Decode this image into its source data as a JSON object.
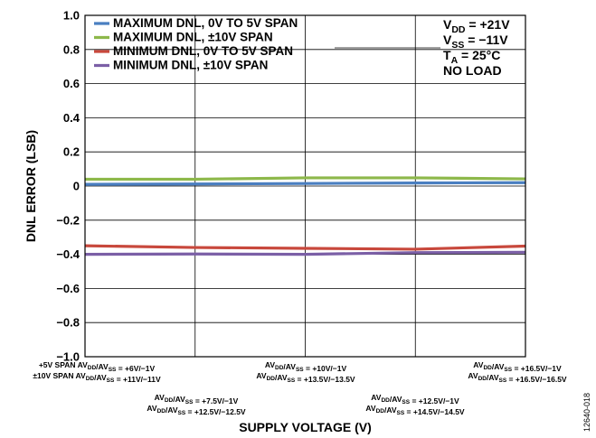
{
  "chart_data": {
    "type": "line",
    "ylabel": "DNL ERROR (LSB)",
    "xlabel": "SUPPLY VOLTAGE (V)",
    "ylim": [
      -1.0,
      1.0
    ],
    "yticks": [
      1.0,
      0.8,
      0.6,
      0.4,
      0.2,
      0,
      -0.2,
      -0.4,
      -0.6,
      -0.8,
      -1.0
    ],
    "ytick_labels": [
      "1.0",
      "0.8",
      "0.6",
      "0.4",
      "0.2",
      "0",
      "−0.2",
      "−0.4",
      "−0.6",
      "−0.8",
      "−1.0"
    ],
    "x_count": 5,
    "grid": true,
    "legend_position": "top-left",
    "categories": [
      {
        "parts": [
          [
            "+5V SPAN AV",
            ""
          ],
          [
            "DD",
            "sub"
          ],
          [
            "/AV",
            ""
          ],
          [
            "SS",
            "sub"
          ],
          [
            " = +6V/−1V",
            ""
          ]
        ],
        "parts2": [
          [
            "±10V SPAN AV",
            ""
          ],
          [
            "DD",
            "sub"
          ],
          [
            "/AV",
            ""
          ],
          [
            "SS",
            "sub"
          ],
          [
            " = +11V/−11V",
            ""
          ]
        ]
      },
      {
        "parts": [
          [
            "AV",
            ""
          ],
          [
            "DD",
            "sub"
          ],
          [
            "/AV",
            ""
          ],
          [
            "SS",
            "sub"
          ],
          [
            " = +7.5V/−1V",
            ""
          ]
        ],
        "parts2": [
          [
            "AV",
            ""
          ],
          [
            "DD",
            "sub"
          ],
          [
            "/AV",
            ""
          ],
          [
            "SS",
            "sub"
          ],
          [
            " = +12.5V/−12.5V",
            ""
          ]
        ]
      },
      {
        "parts": [
          [
            "AV",
            ""
          ],
          [
            "DD",
            "sub"
          ],
          [
            "/AV",
            ""
          ],
          [
            "SS",
            "sub"
          ],
          [
            " = +10V/−1V",
            ""
          ]
        ],
        "parts2": [
          [
            "AV",
            ""
          ],
          [
            "DD",
            "sub"
          ],
          [
            "/AV",
            ""
          ],
          [
            "SS",
            "sub"
          ],
          [
            " = +13.5V/−13.5V",
            ""
          ]
        ]
      },
      {
        "parts": [
          [
            "AV",
            ""
          ],
          [
            "DD",
            "sub"
          ],
          [
            "/AV",
            ""
          ],
          [
            "SS",
            "sub"
          ],
          [
            " = +12.5V/−1V",
            ""
          ]
        ],
        "parts2": [
          [
            "AV",
            ""
          ],
          [
            "DD",
            "sub"
          ],
          [
            "/AV",
            ""
          ],
          [
            "SS",
            "sub"
          ],
          [
            " = +14.5V/−14.5V",
            ""
          ]
        ]
      },
      {
        "parts": [
          [
            "AV",
            ""
          ],
          [
            "DD",
            "sub"
          ],
          [
            "/AV",
            ""
          ],
          [
            "SS",
            "sub"
          ],
          [
            " = +16.5V/−1V",
            ""
          ]
        ],
        "parts2": [
          [
            "AV",
            ""
          ],
          [
            "DD",
            "sub"
          ],
          [
            "/AV",
            ""
          ],
          [
            "SS",
            "sub"
          ],
          [
            " = +16.5V/−16.5V",
            ""
          ]
        ]
      }
    ],
    "series": [
      {
        "name": "MAXIMUM DNL, 0V TO 5V SPAN",
        "color": "#4a7fc1",
        "values": [
          0.01,
          0.012,
          0.015,
          0.018,
          0.02
        ]
      },
      {
        "name": "MAXIMUM DNL, ±10V SPAN",
        "color": "#8db84a",
        "values": [
          0.04,
          0.04,
          0.048,
          0.048,
          0.042
        ]
      },
      {
        "name": "MINIMUM DNL, 0V TO 5V SPAN",
        "color": "#c8483c",
        "values": [
          -0.35,
          -0.36,
          -0.365,
          -0.37,
          -0.352
        ]
      },
      {
        "name": "MINIMUM DNL, ±10V SPAN",
        "color": "#7b5fa6",
        "values": [
          -0.4,
          -0.398,
          -0.4,
          -0.39,
          -0.388
        ]
      }
    ],
    "conditions": [
      {
        "label": "V",
        "sub": "DD",
        "value": " = +21V"
      },
      {
        "label": "V",
        "sub": "SS",
        "value": " = −11V"
      },
      {
        "label": "T",
        "sub": "A",
        "value": " = 25°C"
      },
      {
        "label": "NO LOAD",
        "sub": "",
        "value": ""
      }
    ],
    "figure_id": "12640-018"
  }
}
